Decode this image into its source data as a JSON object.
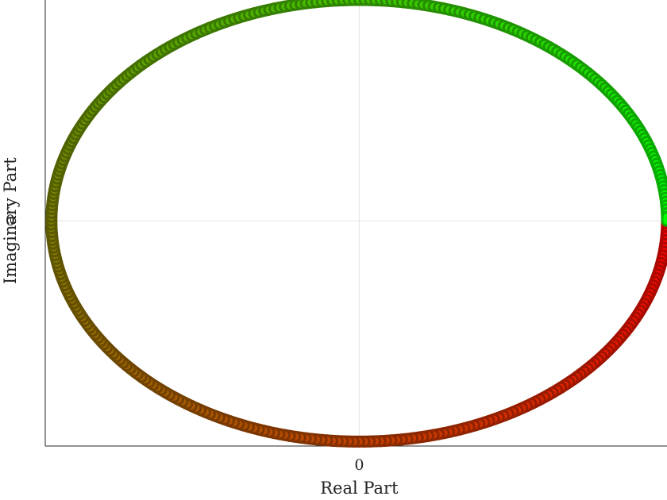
{
  "chart_data": {
    "type": "line",
    "title": "",
    "xlabel": "Real Part",
    "ylabel": "Imaginary Part",
    "xlim": [
      -1.02,
      1.0
    ],
    "ylim": [
      -1.02,
      1.0
    ],
    "grid": true,
    "x_ticks": [
      {
        "value": 0,
        "label": "0"
      }
    ],
    "y_ticks": [
      {
        "value": 0,
        "label": "0"
      }
    ],
    "series": [
      {
        "curve": "unit-circle",
        "points": 361,
        "theta_start_deg": 0,
        "theta_end_deg": 360,
        "color_start": "#ff0000",
        "color_end": "#00ff00"
      }
    ]
  },
  "colors": {
    "axis": "#262626",
    "grid": "#e3e3e3",
    "text": "#222222"
  }
}
